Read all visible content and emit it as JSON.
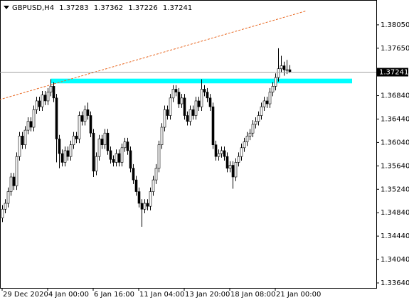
{
  "chart_data": {
    "type": "candlestick",
    "title": "GBPUSD,H4",
    "categories": [
      "29 Dec 2020",
      null,
      null,
      null,
      null,
      null,
      null,
      null,
      null,
      null,
      null,
      null,
      null,
      null,
      null,
      null,
      "4 Jan 00:00",
      null,
      null,
      null,
      null,
      null,
      null,
      null,
      null,
      null,
      null,
      null,
      null,
      null,
      null,
      null,
      "6 Jan 16:00",
      null,
      null,
      null,
      null,
      null,
      null,
      null,
      null,
      null,
      null,
      null,
      null,
      null,
      null,
      null,
      "11 Jan 04:00",
      null,
      null,
      null,
      null,
      null,
      null,
      null,
      null,
      null,
      null,
      null,
      null,
      null,
      null,
      null,
      "13 Jan 20:00",
      null,
      null,
      null,
      null,
      null,
      null,
      null,
      null,
      null,
      null,
      null,
      null,
      null,
      null,
      null,
      "18 Jan 08:00",
      null,
      null,
      null,
      null,
      null,
      null,
      null,
      null,
      null,
      null,
      null,
      null,
      null,
      null,
      null,
      "21 Jan 00:00",
      null,
      null,
      null,
      null,
      null
    ],
    "ohlc": [
      [
        1.3475,
        1.3497,
        1.3468,
        1.349
      ],
      [
        1.349,
        1.3507,
        1.3483,
        1.35
      ],
      [
        1.35,
        1.3527,
        1.3493,
        1.352
      ],
      [
        1.352,
        1.3552,
        1.3513,
        1.3545
      ],
      [
        1.3545,
        1.3552,
        1.3523,
        1.353
      ],
      [
        1.353,
        1.3587,
        1.3523,
        1.358
      ],
      [
        1.358,
        1.3622,
        1.3573,
        1.3615
      ],
      [
        1.3615,
        1.3622,
        1.3593,
        1.36
      ],
      [
        1.36,
        1.3632,
        1.3593,
        1.3625
      ],
      [
        1.3625,
        1.3647,
        1.3618,
        1.364
      ],
      [
        1.364,
        1.3647,
        1.3623,
        1.363
      ],
      [
        1.363,
        1.3667,
        1.3623,
        1.366
      ],
      [
        1.366,
        1.3682,
        1.3653,
        1.3675
      ],
      [
        1.3675,
        1.3682,
        1.3658,
        1.3665
      ],
      [
        1.3665,
        1.3692,
        1.3658,
        1.3685
      ],
      [
        1.3685,
        1.3692,
        1.3668,
        1.3675
      ],
      [
        1.3675,
        1.3697,
        1.3668,
        1.369
      ],
      [
        1.369,
        1.3712,
        1.3683,
        1.37
      ],
      [
        1.37,
        1.3707,
        1.3673,
        1.368
      ],
      [
        1.368,
        1.3687,
        1.357,
        1.361
      ],
      [
        1.361,
        1.3617,
        1.356,
        1.3585
      ],
      [
        1.3585,
        1.3592,
        1.3563,
        1.357
      ],
      [
        1.357,
        1.3597,
        1.3563,
        1.359
      ],
      [
        1.359,
        1.3597,
        1.3573,
        1.358
      ],
      [
        1.358,
        1.3607,
        1.3573,
        1.36
      ],
      [
        1.36,
        1.3622,
        1.3593,
        1.3615
      ],
      [
        1.3615,
        1.3622,
        1.3603,
        1.361
      ],
      [
        1.361,
        1.3657,
        1.3603,
        1.365
      ],
      [
        1.365,
        1.3657,
        1.3633,
        1.364
      ],
      [
        1.364,
        1.3667,
        1.3633,
        1.366
      ],
      [
        1.366,
        1.3672,
        1.3643,
        1.365
      ],
      [
        1.365,
        1.3657,
        1.3613,
        1.362
      ],
      [
        1.362,
        1.3627,
        1.3545,
        1.3555
      ],
      [
        1.3555,
        1.3587,
        1.3548,
        1.358
      ],
      [
        1.358,
        1.3617,
        1.3573,
        1.361
      ],
      [
        1.361,
        1.3617,
        1.3593,
        1.36
      ],
      [
        1.36,
        1.3627,
        1.3593,
        1.362
      ],
      [
        1.362,
        1.3627,
        1.3583,
        1.359
      ],
      [
        1.359,
        1.3597,
        1.3568,
        1.3575
      ],
      [
        1.3575,
        1.3582,
        1.3563,
        1.357
      ],
      [
        1.357,
        1.3592,
        1.3563,
        1.3585
      ],
      [
        1.3585,
        1.3592,
        1.3563,
        1.357
      ],
      [
        1.357,
        1.3602,
        1.3563,
        1.3595
      ],
      [
        1.3595,
        1.3612,
        1.3588,
        1.3605
      ],
      [
        1.3605,
        1.3612,
        1.3583,
        1.359
      ],
      [
        1.359,
        1.3597,
        1.3553,
        1.356
      ],
      [
        1.356,
        1.3567,
        1.3533,
        1.354
      ],
      [
        1.354,
        1.3547,
        1.3513,
        1.352
      ],
      [
        1.352,
        1.3527,
        1.3493,
        1.35
      ],
      [
        1.35,
        1.3507,
        1.346,
        1.349
      ],
      [
        1.349,
        1.3507,
        1.3483,
        1.35
      ],
      [
        1.35,
        1.3507,
        1.3488,
        1.3495
      ],
      [
        1.3495,
        1.3527,
        1.3488,
        1.352
      ],
      [
        1.352,
        1.3547,
        1.3513,
        1.354
      ],
      [
        1.354,
        1.3567,
        1.3533,
        1.356
      ],
      [
        1.356,
        1.3607,
        1.3553,
        1.36
      ],
      [
        1.36,
        1.3637,
        1.3593,
        1.363
      ],
      [
        1.363,
        1.3667,
        1.3623,
        1.366
      ],
      [
        1.366,
        1.3667,
        1.3643,
        1.365
      ],
      [
        1.365,
        1.3687,
        1.3643,
        1.368
      ],
      [
        1.368,
        1.3702,
        1.3673,
        1.3695
      ],
      [
        1.3695,
        1.3702,
        1.3683,
        1.369
      ],
      [
        1.369,
        1.3697,
        1.3663,
        1.367
      ],
      [
        1.367,
        1.3687,
        1.3663,
        1.368
      ],
      [
        1.368,
        1.3687,
        1.3643,
        1.365
      ],
      [
        1.365,
        1.3657,
        1.3633,
        1.364
      ],
      [
        1.364,
        1.3667,
        1.3633,
        1.366
      ],
      [
        1.366,
        1.3667,
        1.3643,
        1.365
      ],
      [
        1.365,
        1.3682,
        1.3643,
        1.3675
      ],
      [
        1.3675,
        1.3682,
        1.3658,
        1.3665
      ],
      [
        1.3665,
        1.3712,
        1.3658,
        1.3695
      ],
      [
        1.3695,
        1.3702,
        1.3683,
        1.369
      ],
      [
        1.369,
        1.3697,
        1.3673,
        1.368
      ],
      [
        1.368,
        1.3687,
        1.3658,
        1.3665
      ],
      [
        1.3665,
        1.3672,
        1.3593,
        1.36
      ],
      [
        1.36,
        1.3607,
        1.3573,
        1.358
      ],
      [
        1.358,
        1.3592,
        1.3573,
        1.3585
      ],
      [
        1.3585,
        1.3597,
        1.3578,
        1.359
      ],
      [
        1.359,
        1.3597,
        1.3573,
        1.358
      ],
      [
        1.358,
        1.3587,
        1.3553,
        1.356
      ],
      [
        1.356,
        1.3572,
        1.3553,
        1.3565
      ],
      [
        1.3565,
        1.3572,
        1.3525,
        1.3545
      ],
      [
        1.3545,
        1.3577,
        1.3538,
        1.357
      ],
      [
        1.357,
        1.3587,
        1.3563,
        1.358
      ],
      [
        1.358,
        1.3602,
        1.3573,
        1.3595
      ],
      [
        1.3595,
        1.3612,
        1.3588,
        1.3605
      ],
      [
        1.3605,
        1.3622,
        1.3598,
        1.3615
      ],
      [
        1.3615,
        1.3627,
        1.3608,
        1.362
      ],
      [
        1.362,
        1.3642,
        1.3613,
        1.3635
      ],
      [
        1.3635,
        1.3647,
        1.3628,
        1.364
      ],
      [
        1.364,
        1.3657,
        1.3633,
        1.365
      ],
      [
        1.365,
        1.3672,
        1.3643,
        1.3665
      ],
      [
        1.3665,
        1.3682,
        1.3658,
        1.3675
      ],
      [
        1.3675,
        1.3682,
        1.3663,
        1.367
      ],
      [
        1.367,
        1.3697,
        1.3663,
        1.369
      ],
      [
        1.369,
        1.3707,
        1.3683,
        1.37
      ],
      [
        1.37,
        1.3722,
        1.3693,
        1.3715
      ],
      [
        1.3715,
        1.3765,
        1.3708,
        1.373
      ],
      [
        1.373,
        1.3752,
        1.3723,
        1.3735
      ],
      [
        1.3735,
        1.3742,
        1.3718,
        1.3728
      ],
      [
        1.3728,
        1.3745,
        1.3721,
        1.37283
      ],
      [
        1.37283,
        1.37362,
        1.37226,
        1.37241
      ]
    ],
    "up_color": "#ffffff",
    "down_color": "#000000",
    "wick_color": "#000000",
    "ylim": [
      1.33555,
      1.38474
    ],
    "yticks": [
      {
        "value": 1.3805,
        "label": "1.38050"
      },
      {
        "value": 1.3765,
        "label": "1.37650"
      },
      {
        "value": 1.3684,
        "label": "1.36840"
      },
      {
        "value": 1.3644,
        "label": "1.36440"
      },
      {
        "value": 1.3604,
        "label": "1.36040"
      },
      {
        "value": 1.3564,
        "label": "1.35640"
      },
      {
        "value": 1.3524,
        "label": "1.35240"
      },
      {
        "value": 1.3484,
        "label": "1.34840"
      },
      {
        "value": 1.3444,
        "label": "1.34440"
      },
      {
        "value": 1.3404,
        "label": "1.34040"
      },
      {
        "value": 1.3364,
        "label": "1.33640"
      }
    ],
    "zone": {
      "x": [
        17,
        123
      ],
      "y": [
        1.3705,
        1.3713
      ],
      "color": "#00ffff"
    },
    "trendline": {
      "x": [
        -1,
        107
      ],
      "y": [
        1.3677,
        1.3829
      ],
      "color": "#e8661f"
    }
  }
}
